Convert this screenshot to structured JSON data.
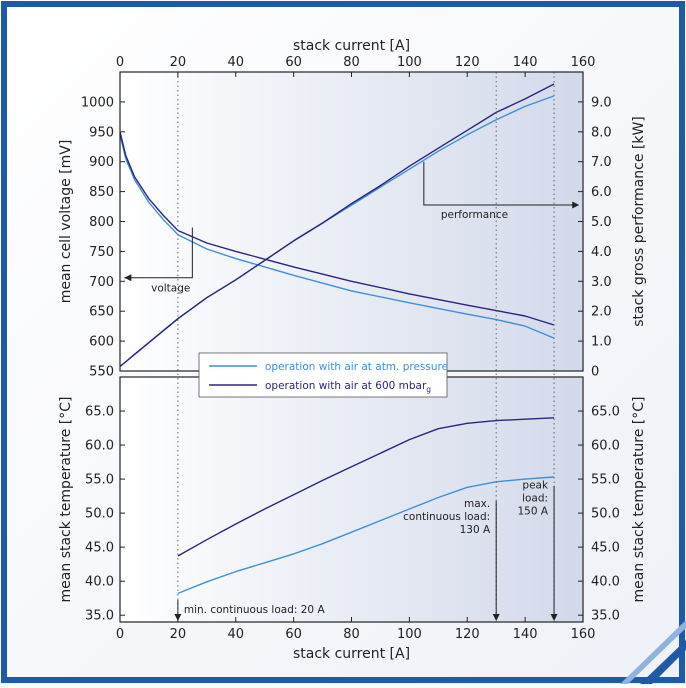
{
  "colors": {
    "border": "#1f5aa6",
    "panel_light": "#ffffff",
    "panel_dark": "#d2d9ea",
    "atm_series": "#3f8fd6",
    "mbar_series": "#2b2580",
    "guide": "#666666"
  },
  "chart_data": [
    {
      "type": "line",
      "xlabel": "stack current [A]",
      "ylabel": "mean cell voltage [mV]",
      "ylabel_right": "stack gross performance [kW]",
      "xlim": [
        0,
        160
      ],
      "ylim": [
        550,
        1050
      ],
      "ylim_right": [
        0,
        10
      ],
      "x_ticks": [
        "0",
        "20",
        "40",
        "60",
        "80",
        "100",
        "120",
        "140",
        "160"
      ],
      "y_ticks": [
        "550",
        "600",
        "650",
        "700",
        "750",
        "800",
        "850",
        "900",
        "950",
        "1000"
      ],
      "y_ticks_right": [
        "0",
        "1.0",
        "2.0",
        "3.0",
        "4.0",
        "5.0",
        "6.0",
        "7.0",
        "8.0",
        "9.0"
      ],
      "grid": false,
      "legend": {
        "placement": "bottom-center",
        "entries": [
          "operation with air at atm. pressure",
          "operation with air at 600 mbar"
        ],
        "subscript": "g"
      },
      "series": [
        {
          "name": "operation with air at atm. pressure",
          "quantity": "voltage",
          "axis": "left",
          "x": [
            0,
            2,
            5,
            10,
            15,
            20,
            30,
            40,
            50,
            60,
            80,
            100,
            120,
            130,
            140,
            150
          ],
          "y": [
            945,
            905,
            870,
            832,
            803,
            778,
            754,
            738,
            724,
            710,
            684,
            664,
            645,
            636,
            625,
            605
          ]
        },
        {
          "name": "operation with air at 600 mbar",
          "quantity": "voltage",
          "axis": "left",
          "x": [
            0,
            2,
            5,
            10,
            15,
            20,
            30,
            40,
            50,
            60,
            80,
            100,
            120,
            130,
            140,
            150
          ],
          "y": [
            950,
            910,
            875,
            838,
            810,
            785,
            764,
            750,
            737,
            724,
            700,
            679,
            660,
            651,
            642,
            627
          ]
        },
        {
          "name": "operation with air at atm. pressure",
          "quantity": "performance",
          "axis": "right",
          "x": [
            0,
            10,
            20,
            30,
            40,
            50,
            60,
            70,
            80,
            90,
            100,
            110,
            120,
            130,
            140,
            150
          ],
          "y": [
            0.15,
            0.95,
            1.75,
            2.45,
            3.05,
            3.7,
            4.35,
            4.95,
            5.55,
            6.15,
            6.75,
            7.35,
            7.9,
            8.4,
            8.85,
            9.2
          ]
        },
        {
          "name": "operation with air at 600 mbar",
          "quantity": "performance",
          "axis": "right",
          "x": [
            0,
            10,
            20,
            30,
            40,
            50,
            60,
            70,
            80,
            90,
            100,
            110,
            120,
            130,
            140,
            150
          ],
          "y": [
            0.15,
            0.95,
            1.75,
            2.45,
            3.05,
            3.7,
            4.35,
            4.95,
            5.6,
            6.2,
            6.85,
            7.45,
            8.05,
            8.65,
            9.1,
            9.6
          ]
        }
      ],
      "annotations": [
        {
          "text": "voltage",
          "x": 25,
          "y": 790
        },
        {
          "text": "performance",
          "x": 105,
          "y": 7.0
        }
      ]
    },
    {
      "type": "line",
      "xlabel": "stack current [A]",
      "ylabel": "mean stack temperature [°C]",
      "ylabel_right": "mean stack temperature [°C]",
      "xlim": [
        0,
        160
      ],
      "ylim": [
        34,
        70
      ],
      "x_ticks": [
        "0",
        "20",
        "40",
        "60",
        "80",
        "100",
        "120",
        "140",
        "160"
      ],
      "y_ticks": [
        "35.0",
        "40.0",
        "45.0",
        "50.0",
        "55.0",
        "60.0",
        "65.0"
      ],
      "grid": false,
      "series": [
        {
          "name": "operation with air at atm. pressure",
          "x": [
            20,
            30,
            40,
            50,
            60,
            70,
            80,
            90,
            100,
            110,
            120,
            130,
            140,
            150
          ],
          "y": [
            38.2,
            39.9,
            41.4,
            42.7,
            44.0,
            45.5,
            47.2,
            48.9,
            50.6,
            52.3,
            53.8,
            54.6,
            55.0,
            55.3
          ]
        },
        {
          "name": "operation with air at 600 mbar",
          "x": [
            20,
            30,
            40,
            50,
            60,
            70,
            80,
            90,
            100,
            110,
            120,
            130,
            140,
            150
          ],
          "y": [
            43.7,
            46.1,
            48.4,
            50.6,
            52.7,
            54.8,
            56.8,
            58.8,
            60.8,
            62.4,
            63.2,
            63.6,
            63.8,
            64.0
          ]
        }
      ],
      "annotations": [
        {
          "text": "min. continuous load: 20 A",
          "x": 20
        },
        {
          "text": "max.\ncontinuous load:\n130 A",
          "x": 130
        },
        {
          "text": "peak\nload:\n150 A",
          "x": 150
        }
      ]
    }
  ]
}
